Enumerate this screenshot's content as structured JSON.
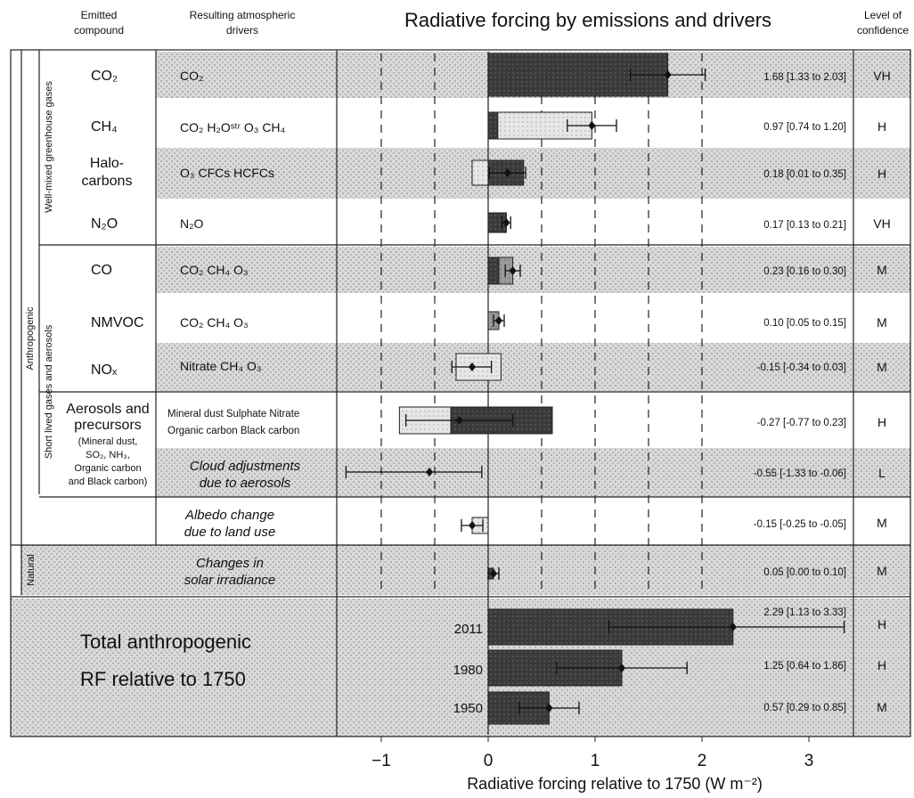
{
  "header": {
    "col_compound": [
      "Emitted",
      "compound"
    ],
    "col_drivers": [
      "Resulting atmospheric",
      "drivers"
    ],
    "title": "Radiative forcing by emissions and drivers",
    "col_confidence": [
      "Level of",
      "confidence"
    ]
  },
  "groups": {
    "anthropogenic": "Anthropogenic",
    "well_mixed": "Well-mixed greenhouse gases",
    "short_lived": "Short lived gases and aerosols",
    "natural": "Natural"
  },
  "rows": [
    {
      "compound": "CO₂",
      "drivers": "CO₂",
      "value_text": "1.68 [1.33 to 2.03]",
      "confidence": "VH"
    },
    {
      "compound": "CH₄",
      "drivers": "CO₂   H₂Oˢᵗʳ  O₃  CH₄",
      "value_text": "0.97 [0.74 to 1.20]",
      "confidence": "H"
    },
    {
      "compound": [
        "Halo-",
        "carbons"
      ],
      "drivers": "O₃   CFCs  HCFCs",
      "value_text": "0.18 [0.01 to 0.35]",
      "confidence": "H"
    },
    {
      "compound": "N₂O",
      "drivers": "N₂O",
      "value_text": "0.17 [0.13 to 0.21]",
      "confidence": "VH"
    },
    {
      "compound": "CO",
      "drivers": "CO₂   CH₄   O₃",
      "value_text": "0.23 [0.16 to 0.30]",
      "confidence": "M"
    },
    {
      "compound": "NMVOC",
      "drivers": "CO₂   CH₄  O₃",
      "value_text": "0.10 [0.05 to 0.15]",
      "confidence": "M"
    },
    {
      "compound": "NOₓ",
      "drivers": "Nitrate  CH₄  O₃",
      "value_text": "-0.15 [-0.34 to 0.03]",
      "confidence": "M"
    },
    {
      "drivers": [
        "Mineral dust  Sulphate  Nitrate",
        "Organic carbon  Black carbon"
      ],
      "value_text": "-0.27 [-0.77 to 0.23]",
      "confidence": "H"
    },
    {
      "drivers": [
        "Cloud adjustments",
        "due to aerosols"
      ],
      "value_text": "-0.55 [-1.33 to -0.06]",
      "confidence": "L"
    },
    {
      "drivers": [
        "Albedo change",
        "due to land use"
      ],
      "value_text": "-0.15 [-0.25 to -0.05]",
      "confidence": "M"
    },
    {
      "drivers": [
        "Changes in",
        "solar irradiance"
      ],
      "value_text": "0.05 [0.00 to 0.10]",
      "confidence": "M"
    }
  ],
  "aerosols_compound": [
    "Aerosols and",
    "precursors",
    "(Mineral dust,",
    "SO₂, NH₃,",
    "Organic carbon",
    "and Black carbon)"
  ],
  "total": {
    "label": [
      "Total anthropogenic",
      "RF relative to 1750"
    ],
    "rows": [
      {
        "year": "2011",
        "value_text": "2.29 [1.13 to 3.33]",
        "confidence": "H"
      },
      {
        "year": "1980",
        "value_text": "1.25 [0.64 to 1.86]",
        "confidence": "H"
      },
      {
        "year": "1950",
        "value_text": "0.57 [0.29 to 0.85]",
        "confidence": "M"
      }
    ]
  },
  "chart_data": {
    "type": "bar",
    "title": "Radiative forcing by emissions and drivers",
    "xlabel": "Radiative forcing relative to 1750 (W m⁻²)",
    "xlim": [
      -1.4,
      3.4
    ],
    "xticks": [
      -1,
      0,
      1,
      2,
      3
    ],
    "xtick_labels": [
      "−1",
      "0",
      "1",
      "2",
      "3"
    ],
    "grid": "dashed vertical lines at every 0.5",
    "categories": [
      "CO2",
      "CH4",
      "Halocarbons",
      "N2O",
      "CO",
      "NMVOC",
      "NOx",
      "Aerosols and precursors",
      "Cloud adjustments due to aerosols",
      "Albedo change due to land use",
      "Changes in solar irradiance",
      "2011",
      "1980",
      "1950"
    ],
    "series": [
      {
        "values": [
          1.68,
          0.97,
          0.18,
          0.17,
          0.23,
          0.1,
          -0.15,
          -0.27,
          -0.55,
          -0.15,
          0.05,
          2.29,
          1.25,
          0.57
        ],
        "lower": [
          1.33,
          0.74,
          0.01,
          0.13,
          0.16,
          0.05,
          -0.34,
          -0.77,
          -1.33,
          -0.25,
          0.0,
          1.13,
          0.64,
          0.29
        ],
        "upper": [
          2.03,
          1.2,
          0.35,
          0.21,
          0.3,
          0.15,
          0.03,
          0.23,
          -0.06,
          -0.05,
          0.1,
          3.33,
          1.86,
          0.85
        ]
      }
    ],
    "segments": [
      [
        [
          0,
          1.68,
          "dark"
        ]
      ],
      [
        [
          0,
          0.97,
          "light"
        ],
        [
          0,
          0.09,
          "dark"
        ]
      ],
      [
        [
          -0.15,
          0.33,
          "light"
        ],
        [
          0,
          0.33,
          "dark"
        ]
      ],
      [
        [
          0,
          0.17,
          "dark"
        ]
      ],
      [
        [
          0,
          0.23,
          "mid"
        ],
        [
          0,
          0.1,
          "dark"
        ]
      ],
      [
        [
          0,
          0.1,
          "mid"
        ]
      ],
      [
        [
          -0.3,
          0.12,
          "light"
        ]
      ],
      [
        [
          -0.83,
          -0.35,
          "light"
        ],
        [
          -0.35,
          0.6,
          "dark"
        ]
      ],
      [
        [
          -1.33,
          -0.06,
          "none"
        ]
      ],
      [
        [
          -0.15,
          0.0,
          "light"
        ]
      ],
      [
        [
          0,
          0.05,
          "dark"
        ]
      ],
      [
        [
          0,
          2.29,
          "dark"
        ]
      ],
      [
        [
          0,
          1.25,
          "dark"
        ]
      ],
      [
        [
          0,
          0.57,
          "dark"
        ]
      ]
    ]
  }
}
